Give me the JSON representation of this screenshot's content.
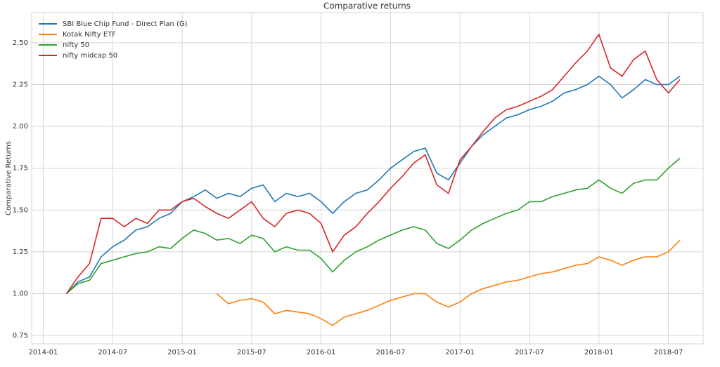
{
  "chart_data": {
    "type": "line",
    "title": "Comparative returns",
    "y_label": "Comparative Returns",
    "x": [
      "2014-03",
      "2014-04",
      "2014-05",
      "2014-06",
      "2014-07",
      "2014-08",
      "2014-09",
      "2014-10",
      "2014-11",
      "2014-12",
      "2015-01",
      "2015-02",
      "2015-03",
      "2015-04",
      "2015-05",
      "2015-06",
      "2015-07",
      "2015-08",
      "2015-09",
      "2015-10",
      "2015-11",
      "2015-12",
      "2016-01",
      "2016-02",
      "2016-03",
      "2016-04",
      "2016-05",
      "2016-06",
      "2016-07",
      "2016-08",
      "2016-09",
      "2016-10",
      "2016-11",
      "2016-12",
      "2017-01",
      "2017-02",
      "2017-03",
      "2017-04",
      "2017-05",
      "2017-06",
      "2017-07",
      "2017-08",
      "2017-09",
      "2017-10",
      "2017-11",
      "2017-12",
      "2018-01",
      "2018-02",
      "2018-03",
      "2018-04",
      "2018-05",
      "2018-06",
      "2018-07",
      "2018-08"
    ],
    "series": [
      {
        "name": "SBI Blue Chip Fund - Direct Plan (G)",
        "color": "#1f77b4",
        "values": [
          1.0,
          1.07,
          1.1,
          1.22,
          1.28,
          1.32,
          1.38,
          1.4,
          1.45,
          1.48,
          1.55,
          1.58,
          1.62,
          1.57,
          1.6,
          1.58,
          1.63,
          1.65,
          1.55,
          1.6,
          1.58,
          1.6,
          1.55,
          1.48,
          1.55,
          1.6,
          1.62,
          1.68,
          1.75,
          1.8,
          1.85,
          1.87,
          1.72,
          1.68,
          1.78,
          1.88,
          1.95,
          2.0,
          2.05,
          2.07,
          2.1,
          2.12,
          2.15,
          2.2,
          2.22,
          2.25,
          2.3,
          2.25,
          2.17,
          2.22,
          2.28,
          2.25,
          2.25,
          2.3
        ]
      },
      {
        "name": "Kotak Nifty ETF",
        "color": "#ff7f0e",
        "values": [
          null,
          null,
          null,
          null,
          null,
          null,
          null,
          null,
          null,
          null,
          null,
          null,
          null,
          1.0,
          0.94,
          0.96,
          0.97,
          0.95,
          0.88,
          0.9,
          0.89,
          0.88,
          0.85,
          0.81,
          0.86,
          0.88,
          0.9,
          0.93,
          0.96,
          0.98,
          1.0,
          1.0,
          0.95,
          0.92,
          0.95,
          1.0,
          1.03,
          1.05,
          1.07,
          1.08,
          1.1,
          1.12,
          1.13,
          1.15,
          1.17,
          1.18,
          1.22,
          1.2,
          1.17,
          1.2,
          1.22,
          1.22,
          1.25,
          1.32
        ]
      },
      {
        "name": "nifty 50",
        "color": "#2ca02c",
        "values": [
          1.0,
          1.06,
          1.08,
          1.18,
          1.2,
          1.22,
          1.24,
          1.25,
          1.28,
          1.27,
          1.33,
          1.38,
          1.36,
          1.32,
          1.33,
          1.3,
          1.35,
          1.33,
          1.25,
          1.28,
          1.26,
          1.26,
          1.21,
          1.13,
          1.2,
          1.25,
          1.28,
          1.32,
          1.35,
          1.38,
          1.4,
          1.38,
          1.3,
          1.27,
          1.32,
          1.38,
          1.42,
          1.45,
          1.48,
          1.5,
          1.55,
          1.55,
          1.58,
          1.6,
          1.62,
          1.63,
          1.68,
          1.63,
          1.6,
          1.66,
          1.68,
          1.68,
          1.75,
          1.81
        ]
      },
      {
        "name": "nifty midcap 50",
        "color": "#d62728",
        "values": [
          1.0,
          1.1,
          1.18,
          1.45,
          1.45,
          1.4,
          1.45,
          1.42,
          1.5,
          1.5,
          1.55,
          1.57,
          1.52,
          1.48,
          1.45,
          1.5,
          1.55,
          1.45,
          1.4,
          1.48,
          1.5,
          1.48,
          1.42,
          1.25,
          1.35,
          1.4,
          1.48,
          1.55,
          1.63,
          1.7,
          1.78,
          1.83,
          1.65,
          1.6,
          1.8,
          1.88,
          1.97,
          2.05,
          2.1,
          2.12,
          2.15,
          2.18,
          2.22,
          2.3,
          2.38,
          2.45,
          2.55,
          2.35,
          2.3,
          2.4,
          2.45,
          2.28,
          2.2,
          2.28
        ]
      }
    ],
    "xlim": [
      "2013-12",
      "2018-10"
    ],
    "xticks": [
      "2014-01",
      "2014-07",
      "2015-01",
      "2015-07",
      "2016-01",
      "2016-07",
      "2017-01",
      "2017-07",
      "2018-01",
      "2018-07"
    ],
    "ylim": [
      0.7,
      2.68
    ],
    "yticks": [
      {
        "value": 0.75,
        "label": "0.75"
      },
      {
        "value": 1.0,
        "label": "1.00"
      },
      {
        "value": 1.25,
        "label": "1.25"
      },
      {
        "value": 1.5,
        "label": "1.50"
      },
      {
        "value": 1.75,
        "label": "1.75"
      },
      {
        "value": 2.0,
        "label": "2.00"
      },
      {
        "value": 2.25,
        "label": "2.25"
      },
      {
        "value": 2.5,
        "label": "2.50"
      }
    ],
    "grid": true,
    "legend": "upper-left"
  }
}
